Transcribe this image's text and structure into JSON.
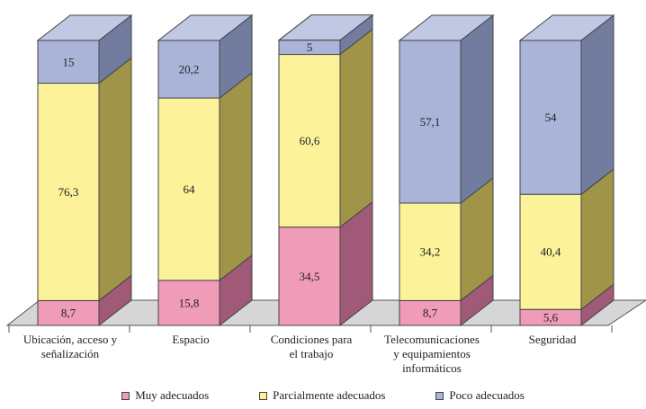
{
  "chart_data": {
    "type": "bar",
    "stacked": true,
    "three_d": true,
    "categories": [
      [
        "Ubicación, acceso y",
        "señalización"
      ],
      [
        "Espacio"
      ],
      [
        "Condiciones para",
        "el trabajo"
      ],
      [
        "Telecomunicaciones",
        "y equipamientos",
        "informáticos"
      ],
      [
        "Seguridad"
      ]
    ],
    "series": [
      {
        "name": "Muy adecuados",
        "values": [
          8.7,
          15.8,
          34.5,
          8.7,
          5.6
        ],
        "labels": [
          "8,7",
          "15,8",
          "34,5",
          "8,7",
          "5,6"
        ]
      },
      {
        "name": "Parcialmente adecuados",
        "values": [
          76.3,
          64,
          60.6,
          34.2,
          40.4
        ],
        "labels": [
          "76,3",
          "64",
          "60,6",
          "34,2",
          "40,4"
        ]
      },
      {
        "name": "Poco adecuados",
        "values": [
          15,
          20.2,
          5,
          57.1,
          54
        ],
        "labels": [
          "15",
          "20,2",
          "5",
          "57,1",
          "54"
        ]
      }
    ],
    "colors": {
      "Muy adecuados": {
        "front": "#f09bb8",
        "side": "#a05a78",
        "top": "#f3b3ca"
      },
      "Parcialmente adecuados": {
        "front": "#fbf29a",
        "side": "#a09448",
        "top": "#fcf6b6"
      },
      "Poco adecuados": {
        "front": "#a9b4d8",
        "side": "#727c9f",
        "top": "#c0c8e4"
      }
    },
    "floor_color": "#d6d6d6",
    "ylim": [
      0,
      100
    ],
    "legend_position": "bottom"
  }
}
